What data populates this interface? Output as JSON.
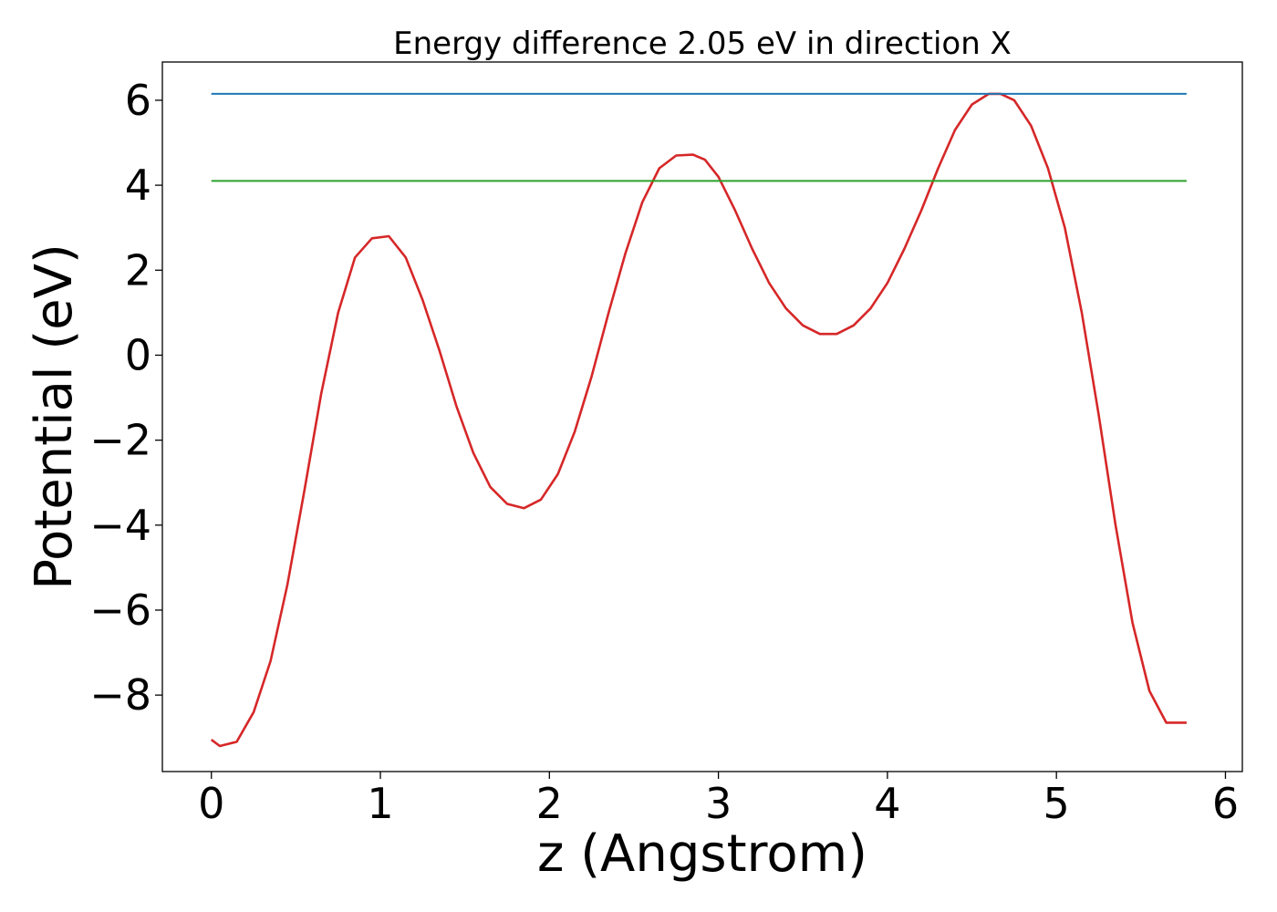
{
  "chart_data": {
    "type": "line",
    "title": "Energy difference 2.05 eV in direction X",
    "xlabel": "z (Angstrom)",
    "ylabel": "Potential (eV)",
    "xlim": [
      -0.29,
      6.1
    ],
    "ylim": [
      -9.8,
      6.9
    ],
    "grid": false,
    "xticks": [
      {
        "value": 0,
        "label": "0"
      },
      {
        "value": 1,
        "label": "1"
      },
      {
        "value": 2,
        "label": "2"
      },
      {
        "value": 3,
        "label": "3"
      },
      {
        "value": 4,
        "label": "4"
      },
      {
        "value": 5,
        "label": "5"
      },
      {
        "value": 6,
        "label": "6"
      }
    ],
    "yticks": [
      {
        "value": 6,
        "label": "6"
      },
      {
        "value": 4,
        "label": "4"
      },
      {
        "value": 2,
        "label": "2"
      },
      {
        "value": 0,
        "label": "0"
      },
      {
        "value": -2,
        "label": "−2"
      },
      {
        "value": -4,
        "label": "−4"
      },
      {
        "value": -6,
        "label": "−6"
      },
      {
        "value": -8,
        "label": "−8"
      }
    ],
    "series": [
      {
        "color": "#d62728",
        "x": [
          0.0,
          0.05,
          0.15,
          0.25,
          0.35,
          0.45,
          0.55,
          0.65,
          0.75,
          0.85,
          0.95,
          1.05,
          1.15,
          1.25,
          1.35,
          1.45,
          1.55,
          1.65,
          1.75,
          1.85,
          1.95,
          2.05,
          2.15,
          2.25,
          2.35,
          2.45,
          2.55,
          2.65,
          2.75,
          2.85,
          2.92,
          3.0,
          3.1,
          3.2,
          3.3,
          3.4,
          3.5,
          3.6,
          3.7,
          3.8,
          3.9,
          4.0,
          4.1,
          4.2,
          4.3,
          4.4,
          4.5,
          4.6,
          4.67,
          4.75,
          4.85,
          4.95,
          5.05,
          5.15,
          5.25,
          5.35,
          5.45,
          5.55,
          5.65,
          5.77
        ],
        "values": [
          -9.05,
          -9.2,
          -9.1,
          -8.4,
          -7.2,
          -5.4,
          -3.2,
          -0.9,
          1.0,
          2.3,
          2.75,
          2.8,
          2.3,
          1.3,
          0.1,
          -1.2,
          -2.3,
          -3.1,
          -3.5,
          -3.6,
          -3.4,
          -2.8,
          -1.8,
          -0.5,
          1.0,
          2.4,
          3.6,
          4.4,
          4.7,
          4.72,
          4.6,
          4.2,
          3.4,
          2.5,
          1.7,
          1.1,
          0.7,
          0.5,
          0.5,
          0.7,
          1.1,
          1.7,
          2.5,
          3.4,
          4.4,
          5.3,
          5.9,
          6.15,
          6.15,
          6.0,
          5.4,
          4.4,
          3.0,
          1.0,
          -1.4,
          -4.0,
          -6.3,
          -7.9,
          -8.65,
          -8.65
        ]
      },
      {
        "color": "#1f77b4",
        "x": [
          0.0,
          5.77
        ],
        "values": [
          6.15,
          6.15
        ]
      },
      {
        "color": "#2ca02c",
        "x": [
          0.0,
          5.77
        ],
        "values": [
          4.1,
          4.1
        ]
      }
    ]
  }
}
